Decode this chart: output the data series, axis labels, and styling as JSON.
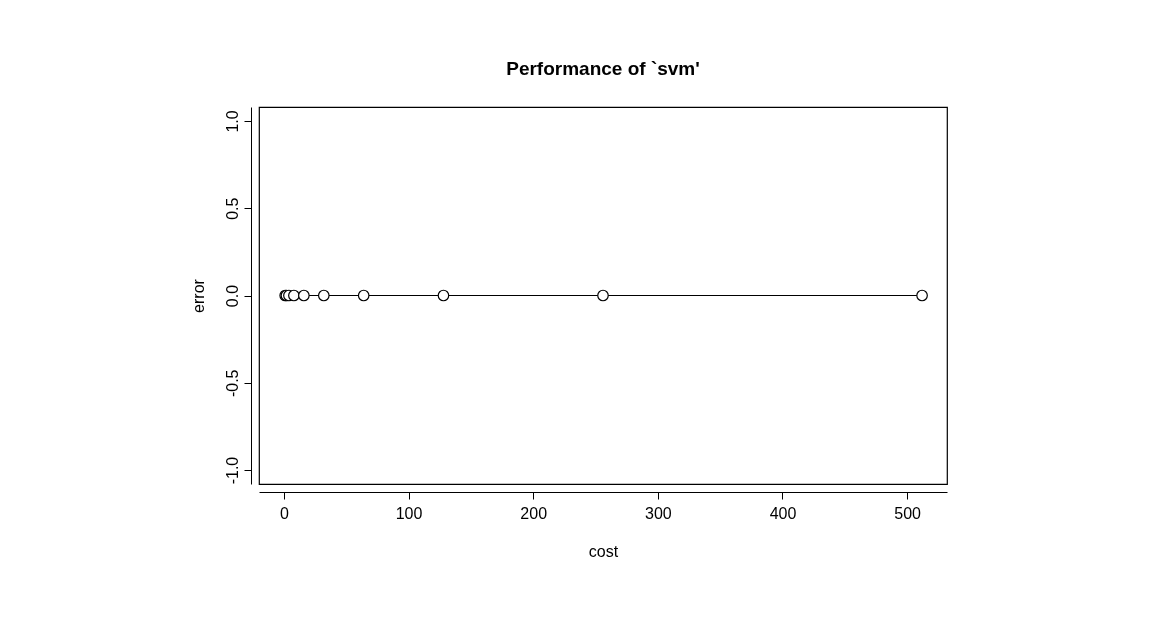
{
  "chart_data": {
    "type": "line",
    "title": "Performance of `svm'",
    "xlabel": "cost",
    "ylabel": "error",
    "x": [
      1,
      2,
      4,
      8,
      16,
      32,
      64,
      128,
      256,
      512
    ],
    "series": [
      {
        "color": "#000000",
        "values": [
          0,
          0,
          0,
          0,
          0,
          0,
          0,
          0,
          0,
          0
        ]
      }
    ],
    "xlim": [
      -20,
      532
    ],
    "xticks": [
      0,
      100,
      200,
      300,
      400,
      500
    ],
    "ylim": [
      -1.08,
      1.08
    ],
    "yticks": [
      {
        "value": -1,
        "label": "-1.0"
      },
      -0.5,
      {
        "value": 0,
        "label": "0.0"
      },
      0.5,
      {
        "value": 1,
        "label": "1.0"
      }
    ],
    "marker": "circle",
    "line_style": "solid",
    "grid": false
  }
}
